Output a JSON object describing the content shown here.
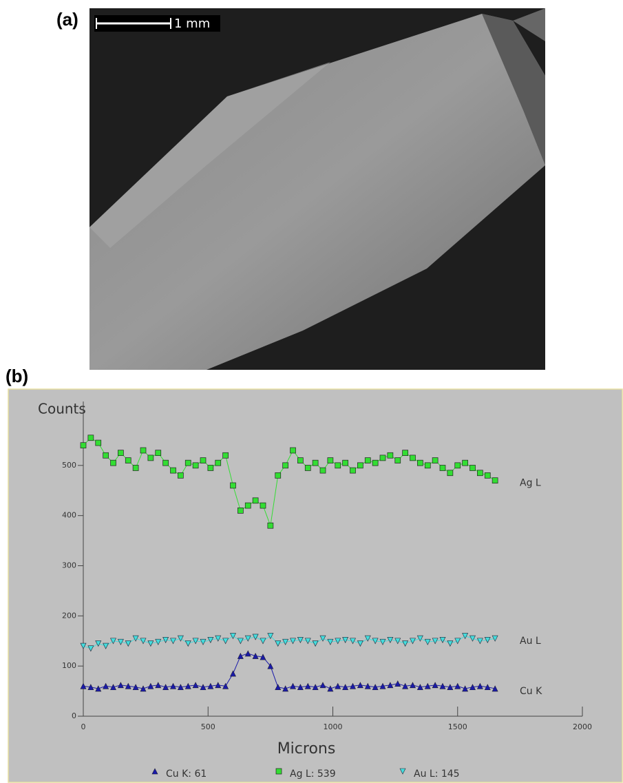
{
  "panel_a": {
    "label": "(a)",
    "scale_bar": "1 mm"
  },
  "chart_data": {
    "type": "line",
    "panel_label": "(b)",
    "y_label": "Counts",
    "x_label": "Microns",
    "x": [
      0,
      30,
      60,
      90,
      120,
      150,
      180,
      210,
      240,
      270,
      300,
      330,
      360,
      390,
      420,
      450,
      480,
      510,
      540,
      570,
      600,
      630,
      660,
      690,
      720,
      750,
      780,
      810,
      840,
      870,
      900,
      930,
      960,
      990,
      1020,
      1050,
      1080,
      1110,
      1140,
      1170,
      1200,
      1230,
      1260,
      1290,
      1320,
      1350,
      1380,
      1410,
      1440,
      1470,
      1500,
      1530,
      1560,
      1590,
      1620,
      1650
    ],
    "series": [
      {
        "name": "Ag L",
        "color": "#33dd33",
        "marker": "square",
        "values": [
          540,
          555,
          545,
          520,
          505,
          525,
          510,
          495,
          530,
          515,
          525,
          505,
          490,
          480,
          505,
          500,
          510,
          495,
          505,
          520,
          460,
          410,
          420,
          430,
          420,
          380,
          480,
          500,
          530,
          510,
          495,
          505,
          490,
          510,
          500,
          505,
          490,
          500,
          510,
          505,
          515,
          520,
          510,
          525,
          515,
          505,
          500,
          510,
          495,
          485,
          500,
          505,
          495,
          485,
          480,
          470
        ]
      },
      {
        "name": "Au L",
        "color": "#44dddd",
        "marker": "triangle-down",
        "values": [
          140,
          135,
          145,
          140,
          150,
          148,
          145,
          155,
          150,
          145,
          148,
          152,
          150,
          155,
          145,
          150,
          148,
          152,
          155,
          150,
          160,
          150,
          155,
          158,
          150,
          160,
          145,
          148,
          150,
          152,
          150,
          145,
          155,
          148,
          150,
          152,
          150,
          145,
          155,
          150,
          148,
          152,
          150,
          145,
          150,
          155,
          148,
          150,
          152,
          145,
          150,
          160,
          155,
          150,
          152,
          155
        ]
      },
      {
        "name": "Cu K",
        "color": "#1a1aaa",
        "marker": "triangle",
        "values": [
          60,
          58,
          55,
          60,
          58,
          62,
          60,
          58,
          55,
          60,
          62,
          58,
          60,
          58,
          60,
          62,
          58,
          60,
          62,
          60,
          85,
          120,
          125,
          120,
          118,
          100,
          58,
          55,
          60,
          58,
          60,
          58,
          62,
          55,
          60,
          58,
          60,
          62,
          60,
          58,
          60,
          62,
          65,
          60,
          62,
          58,
          60,
          62,
          60,
          58,
          60,
          55,
          58,
          60,
          58,
          55
        ]
      }
    ],
    "legend": [
      {
        "label": "Cu K: 61",
        "series": 2
      },
      {
        "label": "Ag L: 539",
        "series": 0
      },
      {
        "label": "Au L: 145",
        "series": 1
      }
    ],
    "xlim": [
      0,
      2000
    ],
    "xticks": [
      0,
      500,
      1000,
      1500,
      2000
    ],
    "ylim": [
      0,
      600
    ],
    "yticks": [
      0,
      100,
      200,
      300,
      400,
      500
    ]
  }
}
